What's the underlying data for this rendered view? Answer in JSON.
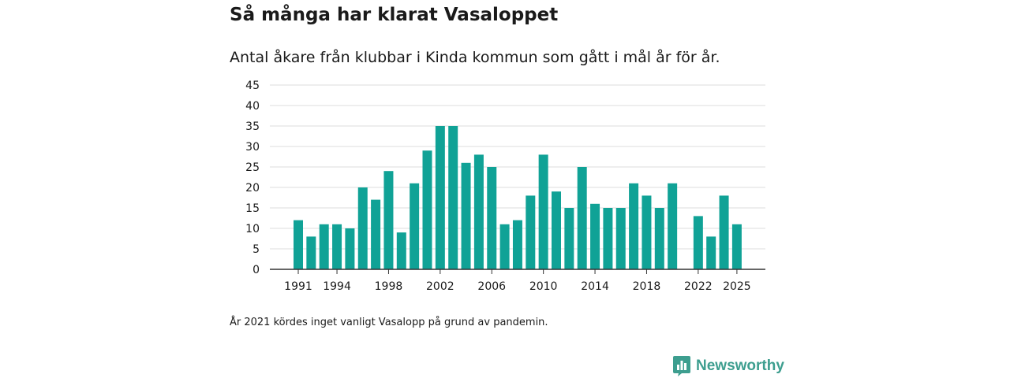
{
  "title": "Så många har klarat Vasaloppet",
  "subtitle": "Antal åkare från klubbar i Kinda kommun som gått i mål år för år.",
  "footnote": "År 2021 kördes inget vanligt Vasalopp på grund av pandemin.",
  "brand": {
    "name": "Newsworthy",
    "color": "#3d9e8f",
    "icon": "newsworthy-logo-icon"
  },
  "colors": {
    "bar": "#10a296",
    "grid": "#dddddd",
    "axis": "#333333",
    "text": "#1a1a1a"
  },
  "chart_data": {
    "type": "bar",
    "title": "Så många har klarat Vasaloppet",
    "subtitle": "Antal åkare från klubbar i Kinda kommun som gått i mål år för år.",
    "xlabel": "",
    "ylabel": "",
    "ylim": [
      0,
      45
    ],
    "yticks": [
      0,
      5,
      10,
      15,
      20,
      25,
      30,
      35,
      40,
      45
    ],
    "xticks": [
      1991,
      1994,
      1998,
      2002,
      2006,
      2010,
      2014,
      2018,
      2022,
      2025
    ],
    "grid": true,
    "x": [
      1991,
      1992,
      1993,
      1994,
      1995,
      1996,
      1997,
      1998,
      1999,
      2000,
      2001,
      2002,
      2003,
      2004,
      2005,
      2006,
      2007,
      2008,
      2009,
      2010,
      2011,
      2012,
      2013,
      2014,
      2015,
      2016,
      2017,
      2018,
      2019,
      2020,
      2021,
      2022,
      2023,
      2024,
      2025
    ],
    "values": [
      12,
      8,
      11,
      11,
      10,
      20,
      17,
      24,
      9,
      21,
      29,
      35,
      35,
      26,
      28,
      25,
      11,
      12,
      18,
      28,
      19,
      15,
      25,
      16,
      15,
      15,
      21,
      18,
      15,
      21,
      0,
      13,
      8,
      18,
      11
    ]
  }
}
